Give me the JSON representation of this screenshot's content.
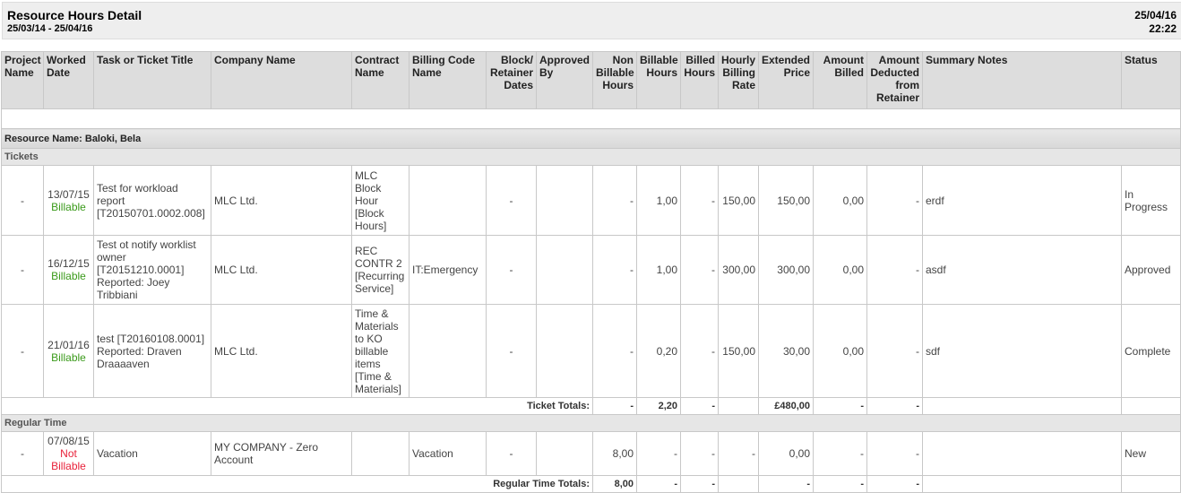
{
  "header": {
    "title": "Resource Hours Detail",
    "date_range": "25/03/14 - 25/04/16",
    "run_date": "25/04/16",
    "run_time": "22:22"
  },
  "columns": [
    "Project Name",
    "Worked Date",
    "Task or Ticket Title",
    "Company Name",
    "Contract Name",
    "Billing Code Name",
    "Block/ Retainer Dates",
    "Approved By",
    "Non Billable Hours",
    "Billable Hours",
    "Billed Hours",
    "Hourly Billing Rate",
    "Extended Price",
    "Amount Billed",
    "Amount Deducted from Retainer",
    "Summary Notes",
    "Status"
  ],
  "resource_label": "Resource Name: Baloki, Bela",
  "sections": [
    {
      "label": "Tickets",
      "rows": [
        {
          "project": "-",
          "date": "13/07/15",
          "billing": "Billable",
          "billable": true,
          "title": "Test for workload report [T20150701.0002.008]",
          "company": "MLC Ltd.",
          "contract": "MLC Block Hour [Block Hours]",
          "billing_code": "",
          "block_dates": "-",
          "approved_by": "",
          "non_billable": "-",
          "billable_hours": "1,00",
          "billed": "-",
          "rate": "150,00",
          "extended": "150,00",
          "amount_billed": "0,00",
          "deducted": "-",
          "notes": "erdf",
          "status": "In Progress"
        },
        {
          "project": "-",
          "date": "16/12/15",
          "billing": "Billable",
          "billable": true,
          "title": "Test ot notify worklist owner [T20151210.0001] Reported: Joey Tribbiani",
          "company": "MLC Ltd.",
          "contract": "REC CONTR 2 [Recurring Service]",
          "billing_code": "IT:Emergency",
          "block_dates": "-",
          "approved_by": "",
          "non_billable": "-",
          "billable_hours": "1,00",
          "billed": "-",
          "rate": "300,00",
          "extended": "300,00",
          "amount_billed": "0,00",
          "deducted": "-",
          "notes": "asdf",
          "status": "Approved"
        },
        {
          "project": "-",
          "date": "21/01/16",
          "billing": "Billable",
          "billable": true,
          "title": "test [T20160108.0001] Reported: Draven Draaaaven",
          "company": "MLC Ltd.",
          "contract": "Time & Materials to KO billable items [Time & Materials]",
          "billing_code": "",
          "block_dates": "-",
          "approved_by": "",
          "non_billable": "-",
          "billable_hours": "0,20",
          "billed": "-",
          "rate": "150,00",
          "extended": "30,00",
          "amount_billed": "0,00",
          "deducted": "-",
          "notes": "sdf",
          "status": "Complete"
        }
      ],
      "totals": {
        "label": "Ticket Totals:",
        "values": [
          "-",
          "2,20",
          "-",
          "",
          "£480,00",
          "-",
          "-"
        ]
      }
    },
    {
      "label": "Regular Time",
      "rows": [
        {
          "project": "-",
          "date": "07/08/15",
          "billing": "Not Billable",
          "billable": false,
          "title": "Vacation",
          "company": "MY COMPANY - Zero Account",
          "contract": "",
          "billing_code": "Vacation",
          "block_dates": "-",
          "approved_by": "",
          "non_billable": "8,00",
          "billable_hours": "-",
          "billed": "-",
          "rate": "-",
          "extended": "0,00",
          "amount_billed": "-",
          "deducted": "-",
          "notes": "",
          "status": "New"
        }
      ],
      "totals": {
        "label": "Regular Time Totals:",
        "values": [
          "8,00",
          "-",
          "-",
          "",
          "-",
          "-",
          "-"
        ]
      }
    }
  ],
  "colors": {
    "billable": "#3a9a1a",
    "not_billable": "#e8213a"
  }
}
